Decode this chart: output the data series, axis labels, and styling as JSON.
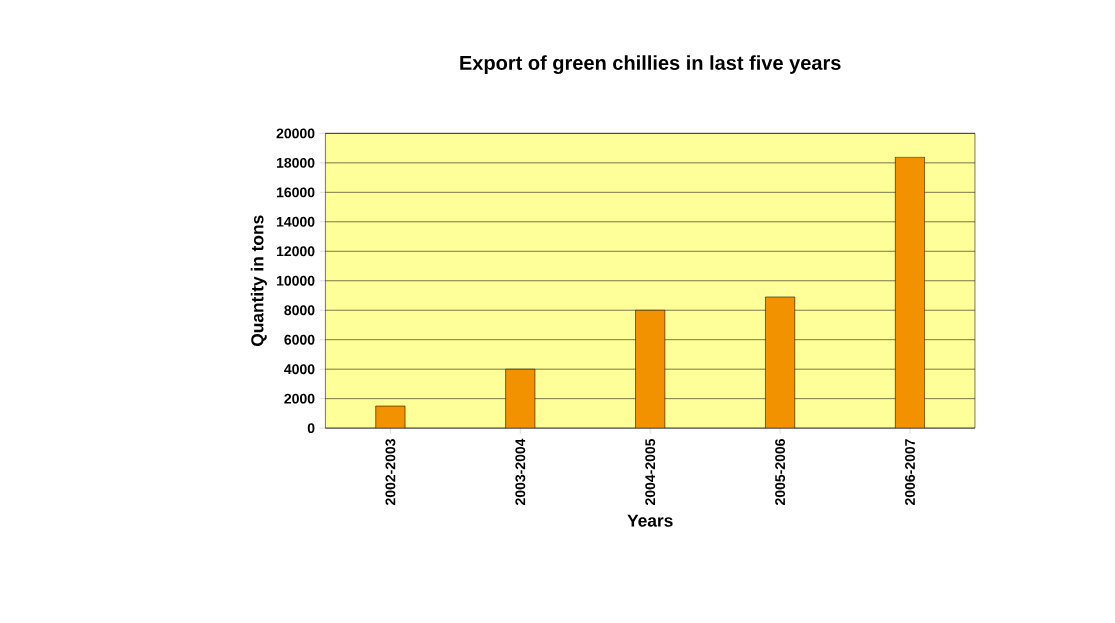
{
  "chart_data": {
    "type": "bar",
    "title": "Export of green chillies in last five years",
    "xlabel": "Years",
    "ylabel": "Quantity in tons",
    "categories": [
      "2002-2003",
      "2003-2004",
      "2004-2005",
      "2005-2006",
      "2006-2007"
    ],
    "values": [
      1500,
      4000,
      8000,
      8900,
      18400
    ],
    "color": "#f39200",
    "ylim": [
      0,
      20000
    ],
    "yticks": [
      0,
      2000,
      4000,
      6000,
      8000,
      10000,
      12000,
      14000,
      16000,
      18000,
      20000
    ],
    "grid": "y"
  }
}
